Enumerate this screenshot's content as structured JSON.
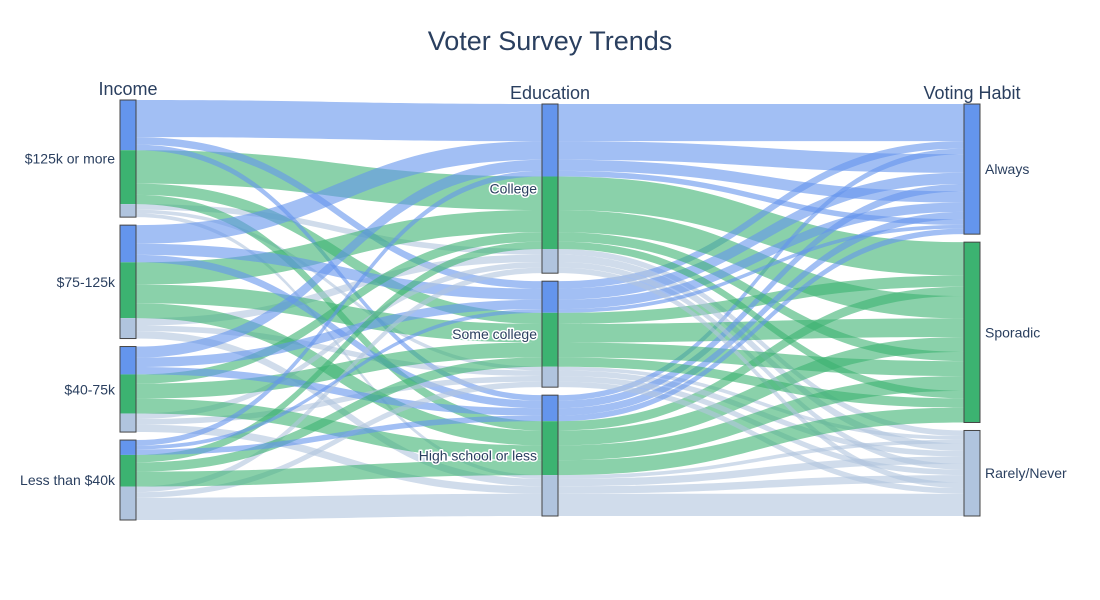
{
  "chart_data": {
    "type": "parallel-categories",
    "title": "Voter Survey Trends",
    "dimensions": [
      {
        "name": "Income",
        "categories": [
          "$125k or more",
          "$75-125k",
          "$40-75k",
          "Less than $40k"
        ]
      },
      {
        "name": "Education",
        "categories": [
          "College",
          "Some college",
          "High school or less"
        ]
      },
      {
        "name": "Voting Habit",
        "categories": [
          "Always",
          "Sporadic",
          "Rarely/Never"
        ]
      }
    ],
    "color_by": "Voting Habit",
    "colors": {
      "Always": "#6495ed",
      "Sporadic": "#3cb371",
      "Rarely/Never": "#b0c4de"
    },
    "paths": [
      {
        "income": "$125k or more",
        "education": "College",
        "voting": "Always",
        "count": 20
      },
      {
        "income": "$125k or more",
        "education": "College",
        "voting": "Sporadic",
        "count": 18
      },
      {
        "income": "$125k or more",
        "education": "College",
        "voting": "Rarely/Never",
        "count": 3
      },
      {
        "income": "$125k or more",
        "education": "Some college",
        "voting": "Always",
        "count": 4
      },
      {
        "income": "$125k or more",
        "education": "Some college",
        "voting": "Sporadic",
        "count": 6
      },
      {
        "income": "$125k or more",
        "education": "Some college",
        "voting": "Rarely/Never",
        "count": 2
      },
      {
        "income": "$125k or more",
        "education": "High school or less",
        "voting": "Always",
        "count": 3
      },
      {
        "income": "$125k or more",
        "education": "High school or less",
        "voting": "Sporadic",
        "count": 5
      },
      {
        "income": "$125k or more",
        "education": "High school or less",
        "voting": "Rarely/Never",
        "count": 2
      },
      {
        "income": "$75-125k",
        "education": "College",
        "voting": "Always",
        "count": 10
      },
      {
        "income": "$75-125k",
        "education": "College",
        "voting": "Sporadic",
        "count": 12
      },
      {
        "income": "$75-125k",
        "education": "College",
        "voting": "Rarely/Never",
        "count": 4
      },
      {
        "income": "$75-125k",
        "education": "Some college",
        "voting": "Always",
        "count": 6
      },
      {
        "income": "$75-125k",
        "education": "Some college",
        "voting": "Sporadic",
        "count": 10
      },
      {
        "income": "$75-125k",
        "education": "Some college",
        "voting": "Rarely/Never",
        "count": 3
      },
      {
        "income": "$75-125k",
        "education": "High school or less",
        "voting": "Always",
        "count": 4
      },
      {
        "income": "$75-125k",
        "education": "High school or less",
        "voting": "Sporadic",
        "count": 8
      },
      {
        "income": "$75-125k",
        "education": "High school or less",
        "voting": "Rarely/Never",
        "count": 4
      },
      {
        "income": "$40-75k",
        "education": "College",
        "voting": "Always",
        "count": 6
      },
      {
        "income": "$40-75k",
        "education": "College",
        "voting": "Sporadic",
        "count": 5
      },
      {
        "income": "$40-75k",
        "education": "College",
        "voting": "Rarely/Never",
        "count": 3
      },
      {
        "income": "$40-75k",
        "education": "Some college",
        "voting": "Always",
        "count": 5
      },
      {
        "income": "$40-75k",
        "education": "Some college",
        "voting": "Sporadic",
        "count": 8
      },
      {
        "income": "$40-75k",
        "education": "Some college",
        "voting": "Rarely/Never",
        "count": 3
      },
      {
        "income": "$40-75k",
        "education": "High school or less",
        "voting": "Always",
        "count": 4
      },
      {
        "income": "$40-75k",
        "education": "High school or less",
        "voting": "Sporadic",
        "count": 8
      },
      {
        "income": "$40-75k",
        "education": "High school or less",
        "voting": "Rarely/Never",
        "count": 4
      },
      {
        "income": "Less than $40k",
        "education": "College",
        "voting": "Always",
        "count": 3
      },
      {
        "income": "Less than $40k",
        "education": "College",
        "voting": "Sporadic",
        "count": 4
      },
      {
        "income": "Less than $40k",
        "education": "College",
        "voting": "Rarely/Never",
        "count": 3
      },
      {
        "income": "Less than $40k",
        "education": "Some college",
        "voting": "Always",
        "count": 2
      },
      {
        "income": "Less than $40k",
        "education": "Some college",
        "voting": "Sporadic",
        "count": 5
      },
      {
        "income": "Less than $40k",
        "education": "Some college",
        "voting": "Rarely/Never",
        "count": 3
      },
      {
        "income": "Less than $40k",
        "education": "High school or less",
        "voting": "Always",
        "count": 3
      },
      {
        "income": "Less than $40k",
        "education": "High school or less",
        "voting": "Sporadic",
        "count": 8
      },
      {
        "income": "Less than $40k",
        "education": "High school or less",
        "voting": "Rarely/Never",
        "count": 12
      }
    ]
  }
}
